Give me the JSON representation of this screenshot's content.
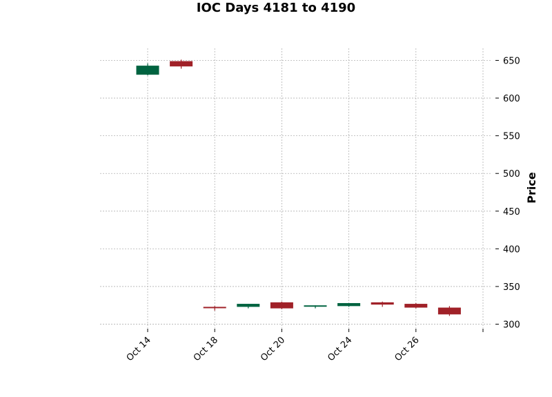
{
  "chart_data": {
    "type": "candlestick",
    "title": "IOC Days 4181 to 4190",
    "ylabel": "Price",
    "xlabel": "",
    "ylim": [
      295,
      666
    ],
    "yticks": [
      300,
      350,
      400,
      450,
      500,
      550,
      600,
      650
    ],
    "x_tick_labels": [
      "Oct 14",
      "Oct 18",
      "Oct 20",
      "Oct 24",
      "Oct 26",
      ""
    ],
    "grid": true,
    "colors": {
      "up": "#006340",
      "down": "#a02128"
    },
    "candles": [
      {
        "open": 631,
        "high": 646,
        "low": 630,
        "close": 643
      },
      {
        "open": 649,
        "high": 651,
        "low": 639,
        "close": 642
      },
      {
        "open": 323,
        "high": 324,
        "low": 318,
        "close": 322
      },
      {
        "open": 323,
        "high": 327,
        "low": 321,
        "close": 327
      },
      {
        "open": 329,
        "high": 330,
        "low": 320,
        "close": 321
      },
      {
        "open": 324,
        "high": 325,
        "low": 321,
        "close": 325
      },
      {
        "open": 324,
        "high": 328,
        "low": 323,
        "close": 328
      },
      {
        "open": 329,
        "high": 330,
        "low": 323,
        "close": 326
      },
      {
        "open": 327,
        "high": 328,
        "low": 321,
        "close": 322
      },
      {
        "open": 322,
        "high": 324,
        "low": 311,
        "close": 313
      }
    ]
  }
}
